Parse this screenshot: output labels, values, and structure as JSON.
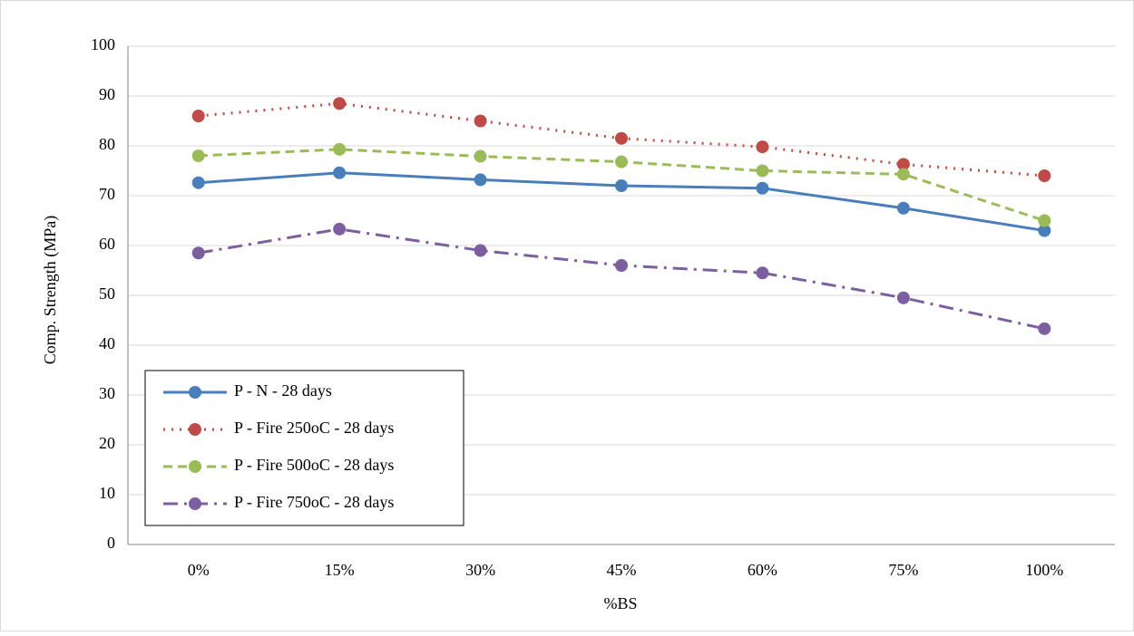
{
  "chart_data": {
    "type": "line",
    "y_label": "Comp. Strength (MPa)",
    "x_label": "%BS",
    "categories": [
      "0%",
      "15%",
      "30%",
      "45%",
      "60%",
      "75%",
      "100%"
    ],
    "series": [
      {
        "name": "P - N - 28 days",
        "color": "#4a7ebb",
        "dash": "solid",
        "values": [
          72.6,
          74.6,
          73.2,
          72,
          71.5,
          67.5,
          63
        ]
      },
      {
        "name": "P - Fire 250oC - 28 days",
        "color": "#be4b48",
        "dash": "dotted",
        "values": [
          86,
          88.5,
          85,
          81.5,
          79.8,
          76.3,
          74
        ]
      },
      {
        "name": "P - Fire 500oC - 28 days",
        "color": "#9bbb59",
        "dash": "dashed",
        "values": [
          78,
          79.3,
          77.9,
          76.8,
          75,
          74.3,
          65
        ]
      },
      {
        "name": "P - Fire 750oC - 28 days",
        "color": "#7d5fa0",
        "dash": "dashdot",
        "values": [
          58.5,
          63.3,
          59,
          56,
          54.5,
          49.5,
          43.3
        ]
      }
    ],
    "ylim": [
      0,
      100
    ],
    "yticks": [
      0,
      10,
      20,
      30,
      40,
      50,
      60,
      70,
      80,
      90,
      100
    ],
    "grid": true,
    "legend": "lower left"
  }
}
